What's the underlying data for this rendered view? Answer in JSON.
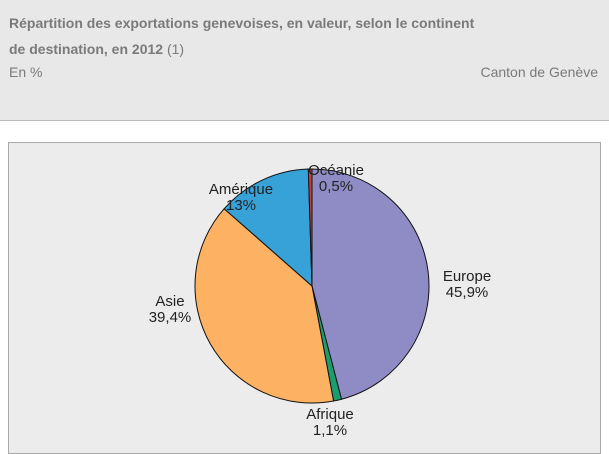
{
  "header": {
    "title": "Répartition des exportations genevoises, en valeur, selon le continent de destination, en 2012",
    "note": "(1)",
    "subtitle": "En %",
    "source": "Canton de Genève"
  },
  "chart_data": {
    "type": "pie",
    "categories": [
      "Europe",
      "Afrique",
      "Asie",
      "Amérique",
      "Océanie"
    ],
    "values": [
      45.9,
      1.1,
      39.4,
      13,
      0.5
    ],
    "value_labels": [
      "45,9%",
      "1,1%",
      "39,4%",
      "13%",
      "0,5%"
    ],
    "colors": [
      "#8f8bc4",
      "#1a9e70",
      "#fcb262",
      "#37a2d8",
      "#c8423a"
    ]
  }
}
